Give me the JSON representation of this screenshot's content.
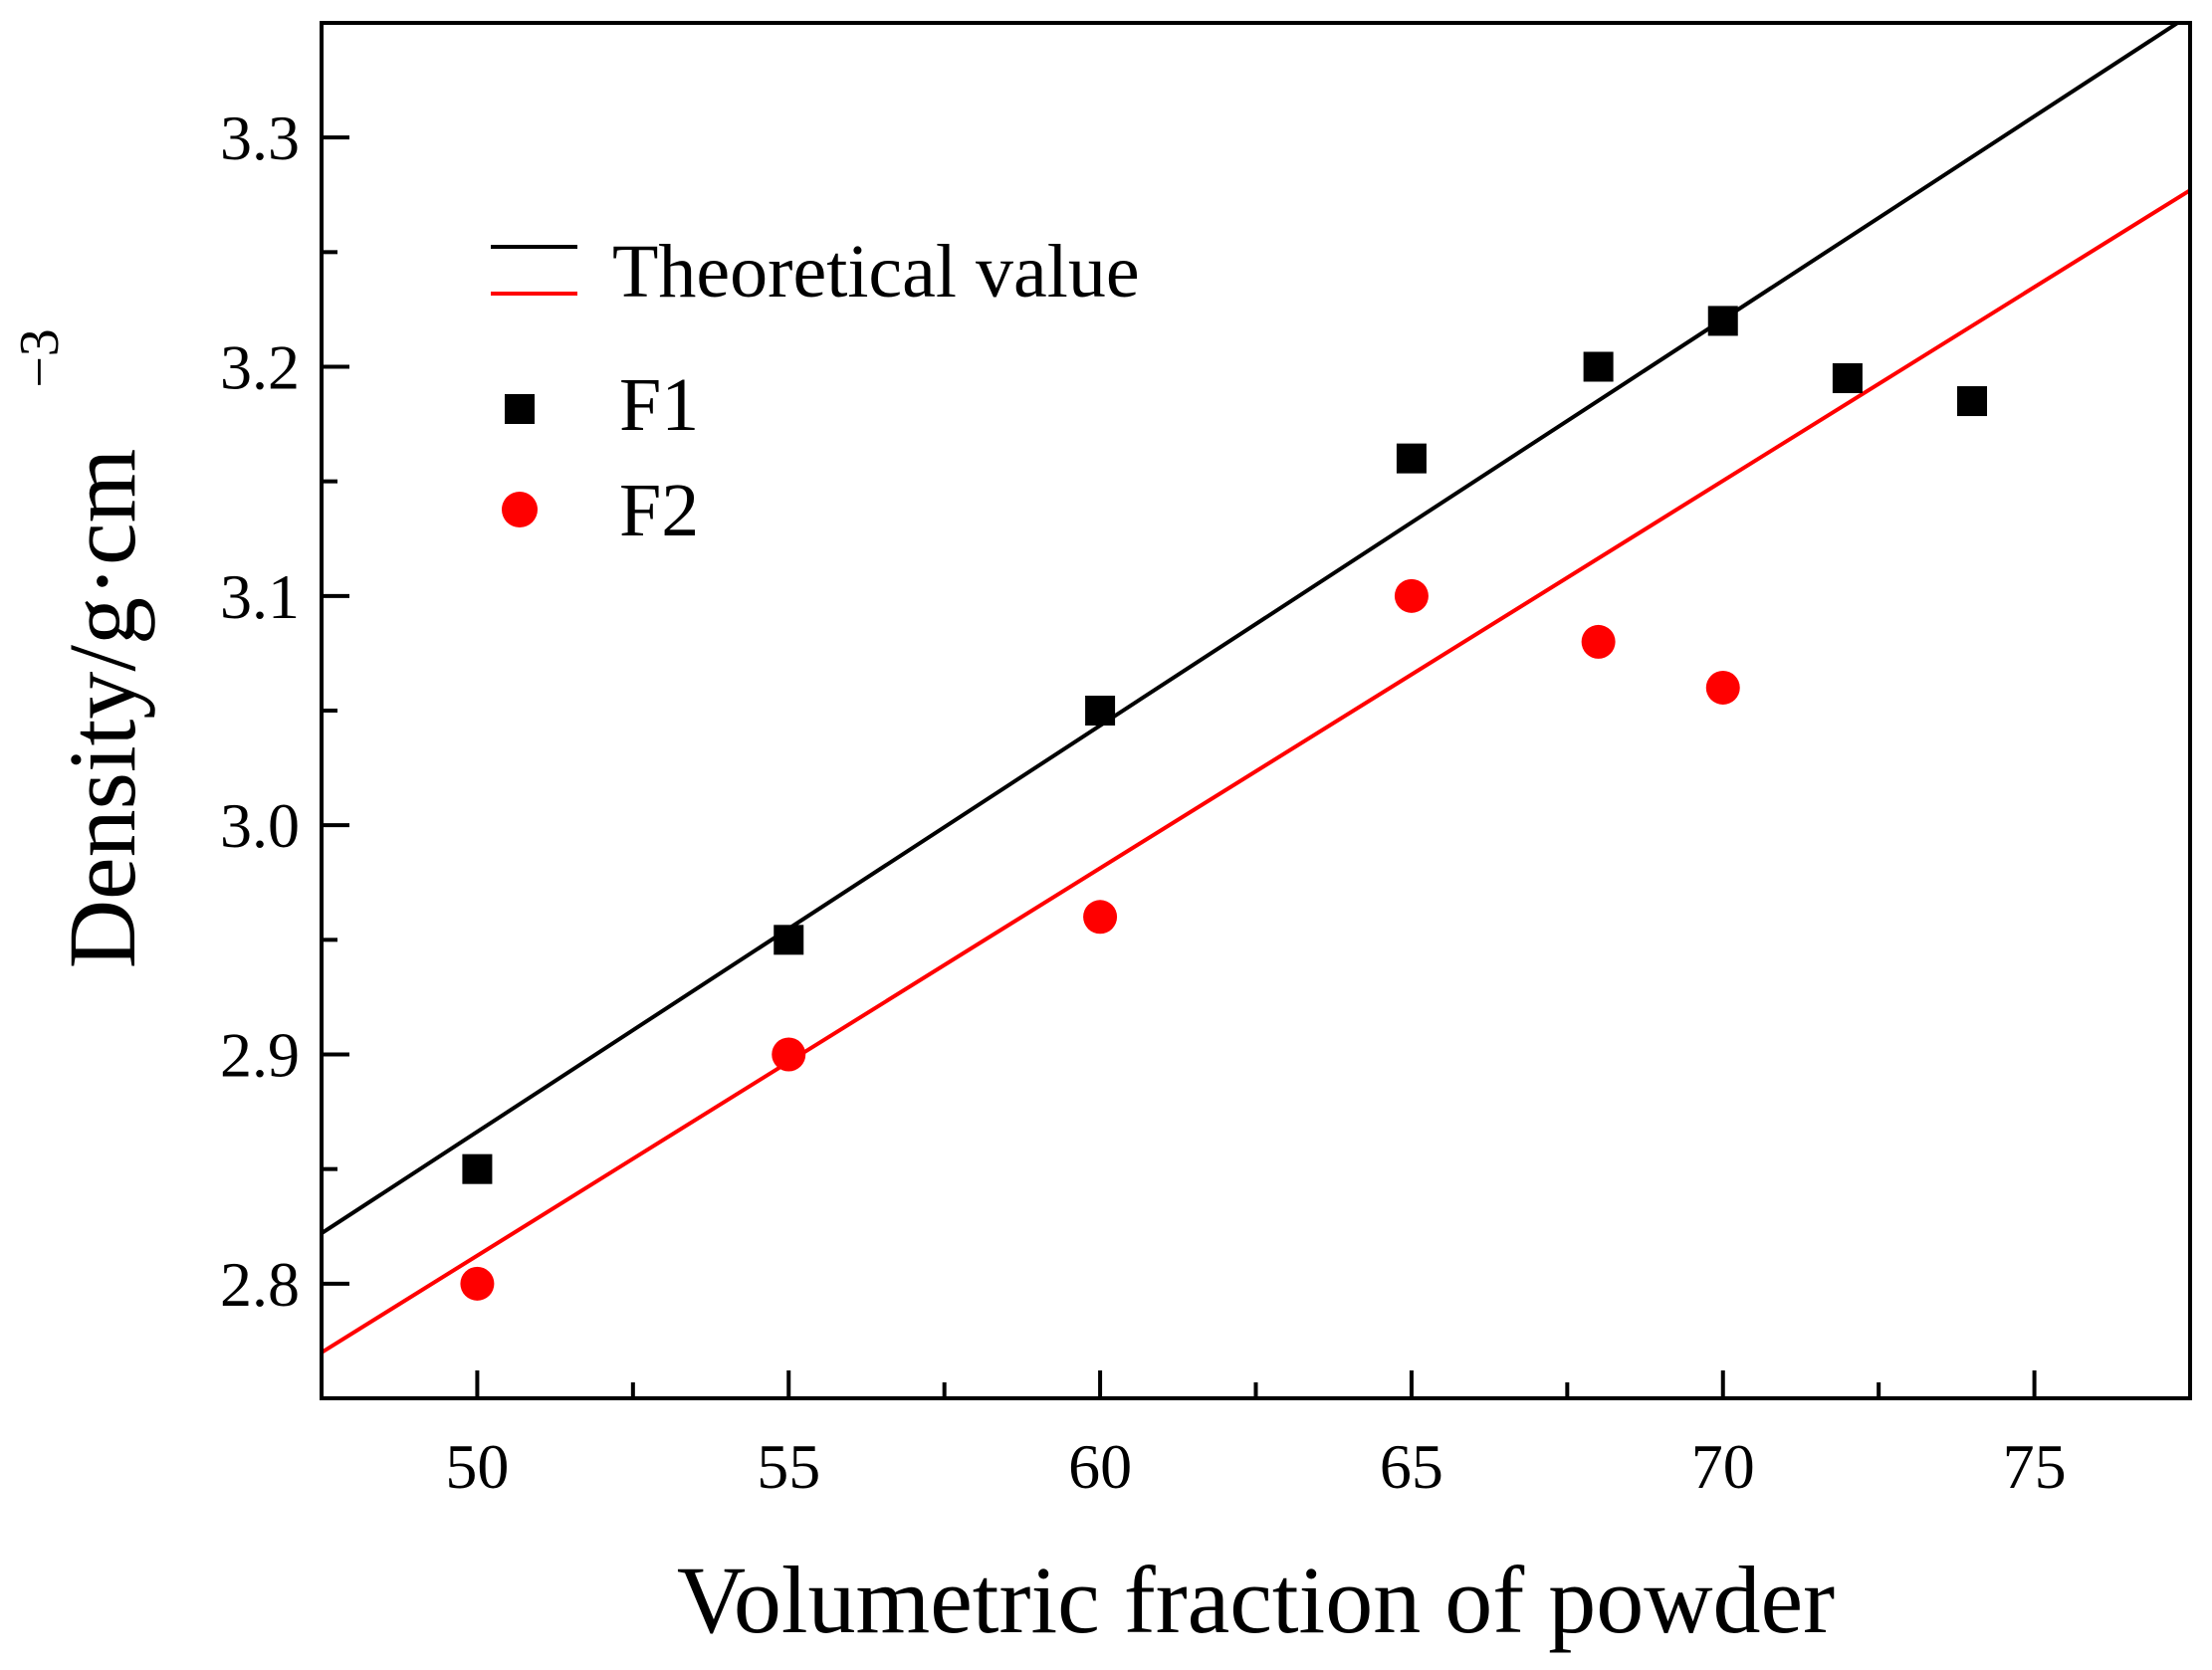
{
  "chart_data": {
    "type": "scatter",
    "xlabel": "Volumetric fraction of powder",
    "ylabel": "Density/g·cm",
    "ylabel_superscript": "−3",
    "xlim": [
      47.5,
      77.5
    ],
    "ylim": [
      2.75,
      3.35
    ],
    "x_ticks_major": [
      50,
      55,
      60,
      65,
      70,
      75
    ],
    "x_ticks_minor": [
      52.5,
      57.5,
      62.5,
      67.5,
      72.5,
      77.5
    ],
    "x_tick_labels": [
      "50",
      "55",
      "60",
      "65",
      "70",
      "75"
    ],
    "y_ticks_major": [
      2.8,
      2.9,
      3.0,
      3.1,
      3.2,
      3.3
    ],
    "y_ticks_minor": [
      2.85,
      2.95,
      3.05,
      3.15,
      3.25
    ],
    "y_tick_labels": [
      "2.8",
      "2.9",
      "3.0",
      "3.1",
      "3.2",
      "3.3"
    ],
    "legend_position": "top-left",
    "series": [
      {
        "name": "F1",
        "marker": "square",
        "color": "#000000",
        "points": [
          {
            "x": 50,
            "y": 2.85
          },
          {
            "x": 55,
            "y": 2.95
          },
          {
            "x": 60,
            "y": 3.05
          },
          {
            "x": 65,
            "y": 3.16
          },
          {
            "x": 68,
            "y": 3.2
          },
          {
            "x": 70,
            "y": 3.22
          },
          {
            "x": 72,
            "y": 3.195
          },
          {
            "x": 74,
            "y": 3.185
          }
        ],
        "line_label": "Theoretical value",
        "line": {
          "x0": 47.5,
          "y0": 2.822,
          "x1": 77.3,
          "y1": 3.35
        }
      },
      {
        "name": "F2",
        "marker": "circle",
        "color": "#ff0000",
        "points": [
          {
            "x": 50,
            "y": 2.8
          },
          {
            "x": 55,
            "y": 2.9
          },
          {
            "x": 60,
            "y": 2.96
          },
          {
            "x": 65,
            "y": 3.1
          },
          {
            "x": 68,
            "y": 3.08
          },
          {
            "x": 70,
            "y": 3.06
          }
        ],
        "line": {
          "x0": 47.5,
          "y0": 2.77,
          "x1": 77.5,
          "y1": 3.277
        }
      }
    ],
    "legend": [
      {
        "label": "Theoretical value",
        "type": "lines",
        "colors": [
          "#000000",
          "#ff0000"
        ]
      },
      {
        "label": "F1",
        "type": "square",
        "color": "#000000"
      },
      {
        "label": "F2",
        "type": "circle",
        "color": "#ff0000"
      }
    ]
  }
}
